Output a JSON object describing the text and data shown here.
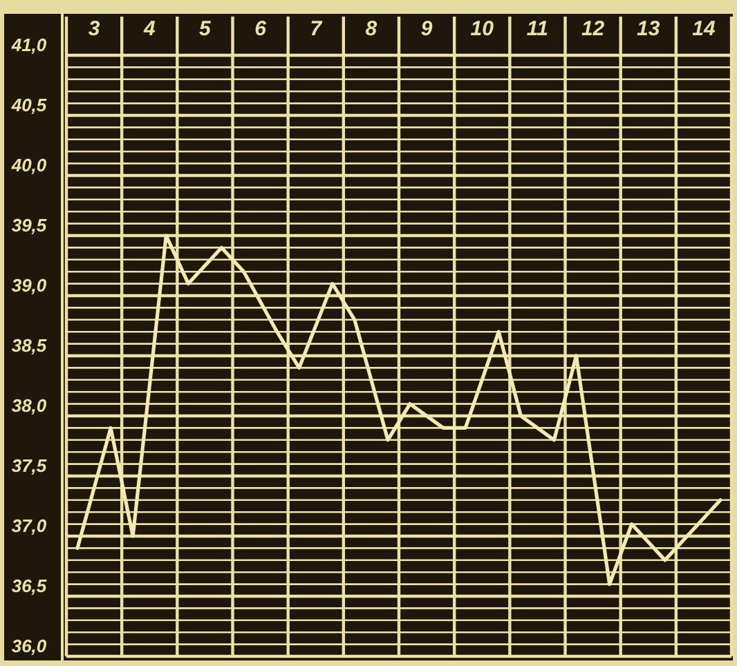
{
  "chart_data": {
    "type": "line",
    "x": [
      3.2,
      3.8,
      4.2,
      4.8,
      5.2,
      5.8,
      6.2,
      6.8,
      7.2,
      7.8,
      8.2,
      8.8,
      9.2,
      9.8,
      10.2,
      10.8,
      11.2,
      11.8,
      12.2,
      12.8,
      13.2,
      13.8,
      14.2,
      14.8
    ],
    "series": [
      {
        "color": "#f2eaae",
        "values": [
          36.9,
          37.9,
          37.0,
          39.5,
          39.1,
          39.4,
          39.2,
          38.7,
          38.4,
          39.1,
          38.8,
          37.8,
          38.1,
          37.9,
          37.9,
          38.7,
          38.0,
          37.8,
          38.5,
          36.6,
          37.1,
          36.8,
          37.0,
          37.3
        ]
      }
    ],
    "xlim": [
      3,
      15
    ],
    "xticks": [
      {
        "value": 3,
        "label": null
      },
      {
        "value": 3.5,
        "label": "3"
      },
      {
        "value": 4,
        "label": null
      },
      {
        "value": 4.5,
        "label": "4"
      },
      {
        "value": 5,
        "label": null
      },
      {
        "value": 5.5,
        "label": "5"
      },
      {
        "value": 6,
        "label": null
      },
      {
        "value": 6.5,
        "label": "6"
      },
      {
        "value": 7,
        "label": null
      },
      {
        "value": 7.5,
        "label": "7"
      },
      {
        "value": 8,
        "label": null
      },
      {
        "value": 8.5,
        "label": "8"
      },
      {
        "value": 9,
        "label": null
      },
      {
        "value": 9.5,
        "label": "9"
      },
      {
        "value": 10,
        "label": null
      },
      {
        "value": 10.5,
        "label": "10"
      },
      {
        "value": 11,
        "label": null
      },
      {
        "value": 11.5,
        "label": "11"
      },
      {
        "value": 12,
        "label": null
      },
      {
        "value": 12.5,
        "label": "12"
      },
      {
        "value": 13,
        "label": null
      },
      {
        "value": 13.5,
        "label": "13"
      },
      {
        "value": 14,
        "label": null
      },
      {
        "value": 14.5,
        "label": "14"
      },
      {
        "value": 15,
        "label": null
      }
    ],
    "ylim": [
      36,
      41
    ],
    "yticks": [
      {
        "value": 36,
        "label": "36,0"
      },
      {
        "value": 36.1,
        "label": null
      },
      {
        "value": 36.2,
        "label": null
      },
      {
        "value": 36.3,
        "label": null
      },
      {
        "value": 36.4,
        "label": null
      },
      {
        "value": 36.5,
        "label": "36,5"
      },
      {
        "value": 36.6,
        "label": null
      },
      {
        "value": 36.7,
        "label": null
      },
      {
        "value": 36.8,
        "label": null
      },
      {
        "value": 36.9,
        "label": null
      },
      {
        "value": 37,
        "label": "37,0"
      },
      {
        "value": 37.1,
        "label": null
      },
      {
        "value": 37.2,
        "label": null
      },
      {
        "value": 37.3,
        "label": null
      },
      {
        "value": 37.4,
        "label": null
      },
      {
        "value": 37.5,
        "label": "37,5"
      },
      {
        "value": 37.6,
        "label": null
      },
      {
        "value": 37.7,
        "label": null
      },
      {
        "value": 37.8,
        "label": null
      },
      {
        "value": 37.9,
        "label": null
      },
      {
        "value": 38,
        "label": "38,0"
      },
      {
        "value": 38.1,
        "label": null
      },
      {
        "value": 38.2,
        "label": null
      },
      {
        "value": 38.3,
        "label": null
      },
      {
        "value": 38.4,
        "label": null
      },
      {
        "value": 38.5,
        "label": "38,5"
      },
      {
        "value": 38.6,
        "label": null
      },
      {
        "value": 38.7,
        "label": null
      },
      {
        "value": 38.8,
        "label": null
      },
      {
        "value": 38.9,
        "label": null
      },
      {
        "value": 39,
        "label": "39,0"
      },
      {
        "value": 39.1,
        "label": null
      },
      {
        "value": 39.2,
        "label": null
      },
      {
        "value": 39.3,
        "label": null
      },
      {
        "value": 39.4,
        "label": null
      },
      {
        "value": 39.5,
        "label": "39,5"
      },
      {
        "value": 39.6,
        "label": null
      },
      {
        "value": 39.7,
        "label": null
      },
      {
        "value": 39.8,
        "label": null
      },
      {
        "value": 39.9,
        "label": null
      },
      {
        "value": 40,
        "label": "40,0"
      },
      {
        "value": 40.1,
        "label": null
      },
      {
        "value": 40.2,
        "label": null
      },
      {
        "value": 40.3,
        "label": null
      },
      {
        "value": 40.4,
        "label": null
      },
      {
        "value": 40.5,
        "label": "40,5"
      },
      {
        "value": 40.6,
        "label": null
      },
      {
        "value": 40.7,
        "label": null
      },
      {
        "value": 40.8,
        "label": null
      },
      {
        "value": 40.9,
        "label": null
      },
      {
        "value": 41,
        "label": "41,0"
      }
    ],
    "grid": true,
    "marker": "none",
    "line_style": "solid"
  }
}
